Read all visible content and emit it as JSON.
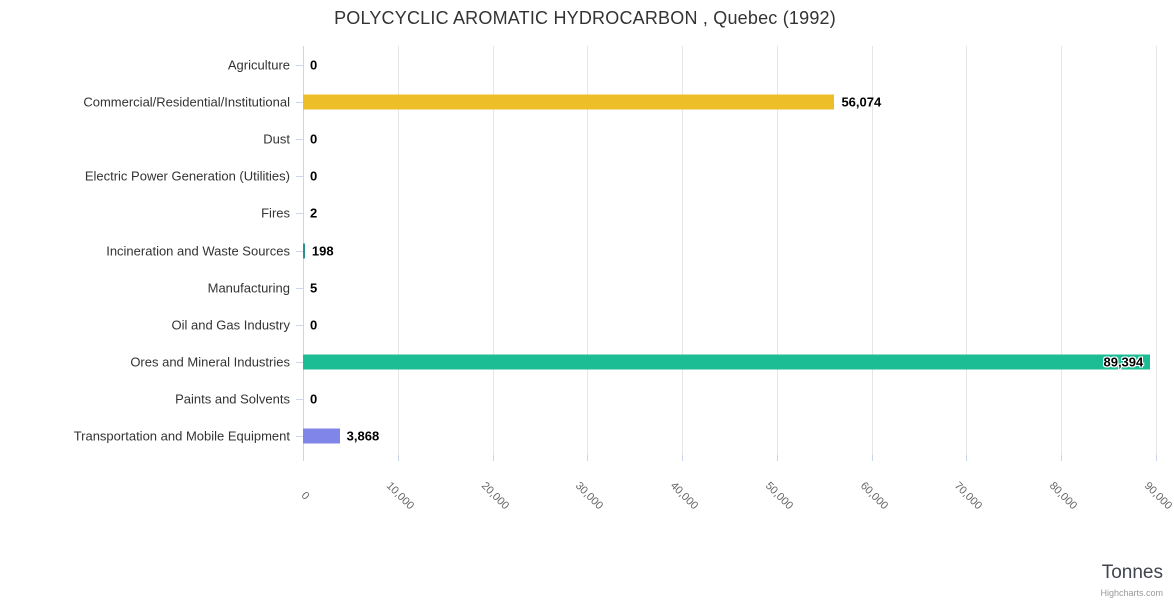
{
  "title": "POLYCYCLIC AROMATIC HYDROCARBON , Quebec (1992)",
  "credits": "Highcharts.com",
  "chart_data": {
    "type": "bar",
    "title": "POLYCYCLIC AROMATIC HYDROCARBON , Quebec (1992)",
    "categories": [
      "Agriculture",
      "Commercial/Residential/Institutional",
      "Dust",
      "Electric Power Generation (Utilities)",
      "Fires",
      "Incineration and Waste Sources",
      "Manufacturing",
      "Oil and Gas Industry",
      "Ores and Mineral Industries",
      "Paints and Solvents",
      "Transportation and Mobile Equipment"
    ],
    "values": [
      0,
      56074,
      0,
      0,
      2,
      198,
      5,
      0,
      89394,
      0,
      3868
    ],
    "value_labels": [
      "0",
      "56,074",
      "0",
      "0",
      "2",
      "198",
      "5",
      "0",
      "89,394",
      "0",
      "3,868"
    ],
    "bar_colors": [
      "#7cb5ec",
      "#edbe27",
      "#90ed7d",
      "#f7a35c",
      "#f15c80",
      "#2b908f",
      "#e4d354",
      "#f45b5b",
      "#1cbc95",
      "#91e8e1",
      "#8085e9"
    ],
    "xlabel": "Tonnes",
    "ylabel": "",
    "axis": {
      "min": 0,
      "max": 90000,
      "tick_interval": 10000,
      "tick_labels": [
        "0",
        "10,000",
        "20,000",
        "30,000",
        "40,000",
        "50,000",
        "60,000",
        "70,000",
        "80,000",
        "90,000"
      ]
    },
    "grid": true,
    "legend": false,
    "orientation": "horizontal"
  },
  "palette": {
    "background": "#ffffff",
    "gridline": "#e6e6e6",
    "axis_line": "#ccd6eb",
    "title_color": "#333333",
    "category_label_color": "#333333",
    "value_label_color": "#000000",
    "tick_label_color": "#666666",
    "axis_title_color": "#40454d",
    "credits_color": "#999999"
  }
}
